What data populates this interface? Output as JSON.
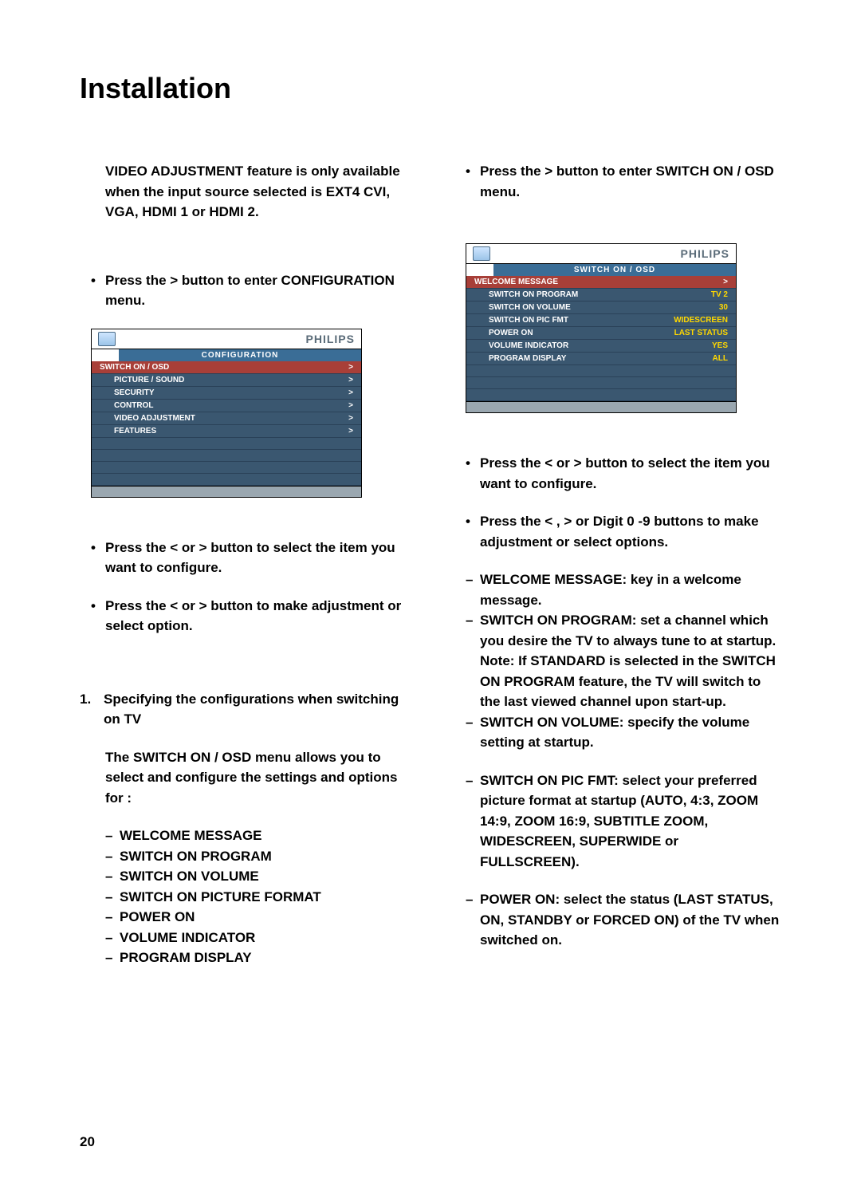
{
  "page_number": "20",
  "title": "Installation",
  "colors": {
    "text": "#000000",
    "osd_body_bg": "#3a5770",
    "osd_highlight_bg": "#a83f38",
    "osd_brand": "#5a6b78",
    "osd_titlebar_bg": "#3a6d96",
    "osd_value_yellow": "#ffd800",
    "osd_footer_bg": "#9aa7b0"
  },
  "left": {
    "note": "VIDEO ADJUSTMENT feature is only available when the input source selected is EXT4 CVI, VGA, HDMI 1 or HDMI 2.",
    "b1": "Press the  >  button to enter CONFIGURATION menu.",
    "b2": "Press the  <  or >   button to select the item you want to configure.",
    "b3": "Press the  <  or  >   button to make adjustment or select option.",
    "numlabel": "1.",
    "numtext": "Specifying the configurations when switching on TV",
    "intro": "The SWITCH ON / OSD menu allows you to select and configure the settings and options for :",
    "dashes": [
      "WELCOME MESSAGE",
      "SWITCH ON PROGRAM",
      "SWITCH ON VOLUME",
      "SWITCH ON PICTURE FORMAT",
      "POWER ON",
      "VOLUME INDICATOR",
      "PROGRAM DISPLAY"
    ],
    "osd": {
      "brand": "PHILIPS",
      "title": "CONFIGURATION",
      "rows": [
        {
          "label": "SWITCH ON  /  OSD",
          "val": ">",
          "highlight": true
        },
        {
          "label": "PICTURE   /   SOUND",
          "val": ">"
        },
        {
          "label": "SECURITY",
          "val": ">"
        },
        {
          "label": "CONTROL",
          "val": ">"
        },
        {
          "label": "VIDEO  ADJUSTMENT",
          "val": ">"
        },
        {
          "label": "FEATURES",
          "val": ">"
        }
      ],
      "empty_rows": 4
    }
  },
  "right": {
    "b1": "Press the  >  button to enter SWITCH ON / OSD menu.",
    "b2": "Press the  <  or >  button to select the item you want to configure.",
    "b3": "Press the < ,  > or Digit 0 -9 buttons to  make adjustment or select options.",
    "d1": "WELCOME MESSAGE: key in a welcome message.",
    "d2": "SWITCH ON PROGRAM: set a channel which you desire the TV to always tune to at startup. Note: If STANDARD is selected in the SWITCH ON PROGRAM feature, the TV will switch to the last viewed channel upon start-up.",
    "d3": "SWITCH ON VOLUME: specify the volume setting at startup.",
    "d4": "SWITCH ON PIC FMT: select your preferred picture format at startup (AUTO, 4:3, ZOOM 14:9, ZOOM 16:9, SUBTITLE ZOOM, WIDESCREEN, SUPERWIDE or FULLSCREEN).",
    "d5": "POWER ON: select the status (LAST STATUS, ON, STANDBY or FORCED ON) of the TV when switched on.",
    "osd": {
      "brand": "PHILIPS",
      "title": "SWITCH ON / OSD",
      "rows": [
        {
          "label": "WELCOME MESSAGE",
          "val": ">",
          "highlight": true
        },
        {
          "label": "SWITCH ON PROGRAM",
          "val": "TV 2",
          "yellow": true
        },
        {
          "label": "SWITCH ON VOLUME",
          "val": "30",
          "yellow": true
        },
        {
          "label": "SWITCH ON PIC FMT",
          "val": "WIDESCREEN",
          "yellow": true
        },
        {
          "label": "POWER ON",
          "val": "LAST  STATUS",
          "yellow": true
        },
        {
          "label": "VOLUME INDICATOR",
          "val": "YES",
          "yellow": true
        },
        {
          "label": "PROGRAM DISPLAY",
          "val": "ALL",
          "yellow": true
        }
      ],
      "empty_rows": 3
    }
  }
}
